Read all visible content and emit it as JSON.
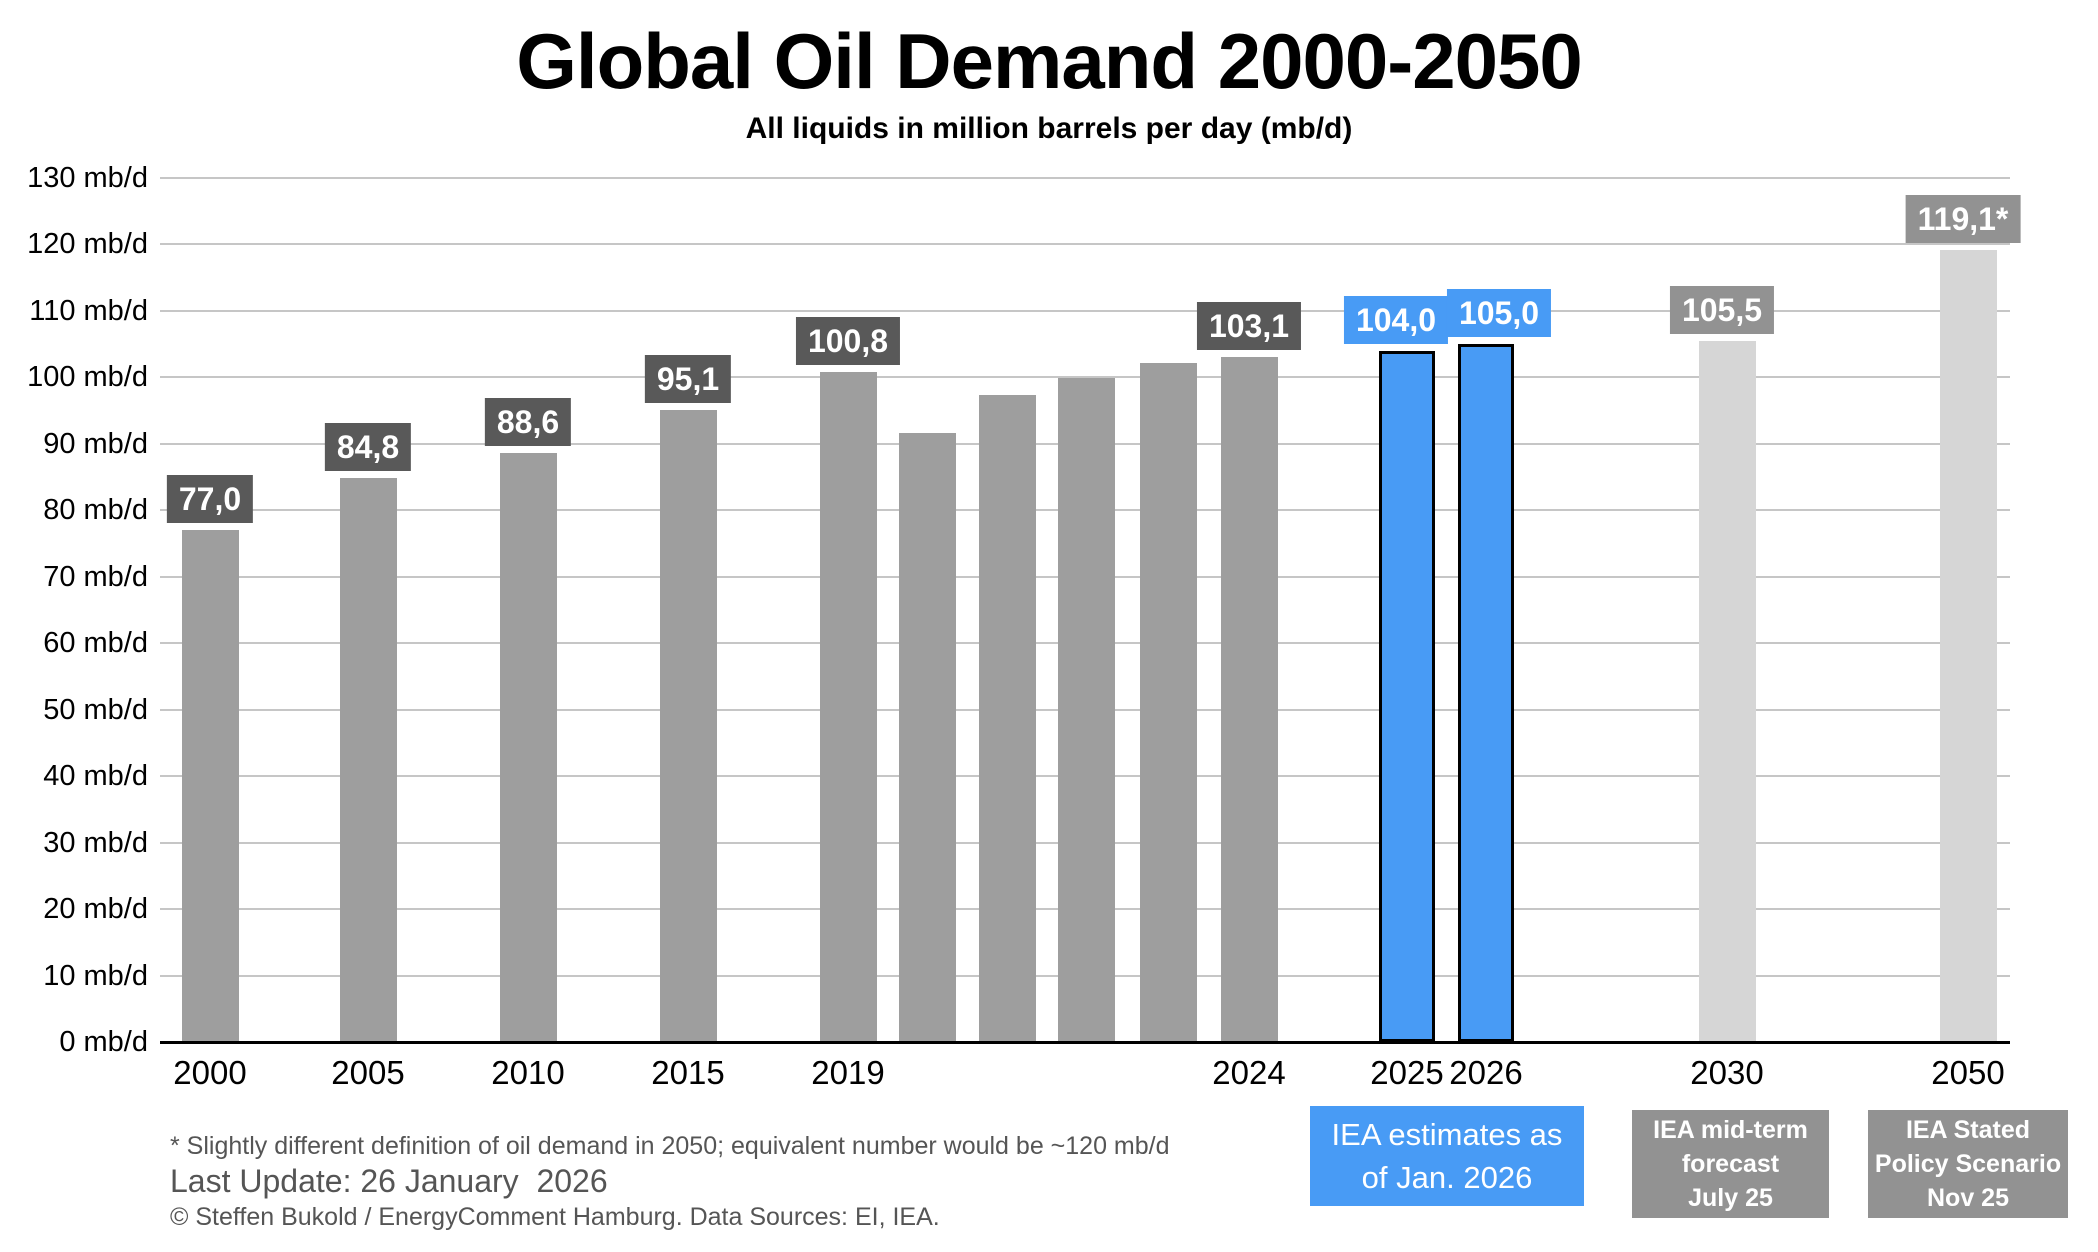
{
  "chart_data": {
    "type": "bar",
    "title": "Global Oil Demand 2000-2050",
    "subtitle": "All liquids in million barrels per day (mb/d)",
    "unit": "mb/d",
    "ylim": [
      0,
      130
    ],
    "ytick_step": 10,
    "ytick_labels": [
      "0 mb/d",
      "10 mb/d",
      "20 mb/d",
      "30 mb/d",
      "40 mb/d",
      "50 mb/d",
      "60 mb/d",
      "70 mb/d",
      "80 mb/d",
      "90 mb/d",
      "100 mb/d",
      "110 mb/d",
      "120 mb/d",
      "130 mb/d"
    ],
    "grid": true,
    "legend_position": "bottom-right",
    "bars": [
      {
        "year": "2000",
        "value": 77.0,
        "label": "77,0",
        "series": "history"
      },
      {
        "year": "2005",
        "value": 84.8,
        "label": "84,8",
        "series": "history"
      },
      {
        "year": "2010",
        "value": 88.6,
        "label": "88,6",
        "series": "history"
      },
      {
        "year": "2015",
        "value": 95.1,
        "label": "95,1",
        "series": "history"
      },
      {
        "year": "2019",
        "value": 100.8,
        "label": "100,8",
        "series": "history"
      },
      {
        "year": "",
        "value": 91.7,
        "label": "",
        "series": "history"
      },
      {
        "year": "",
        "value": 97.3,
        "label": "",
        "series": "history"
      },
      {
        "year": "",
        "value": 99.9,
        "label": "",
        "series": "history"
      },
      {
        "year": "",
        "value": 102.2,
        "label": "",
        "series": "history"
      },
      {
        "year": "2024",
        "value": 103.1,
        "label": "103,1",
        "series": "history"
      },
      {
        "year": "2025",
        "value": 104.0,
        "label": "104,0",
        "series": "estimate"
      },
      {
        "year": "2026",
        "value": 105.0,
        "label": "105,0",
        "series": "estimate"
      },
      {
        "year": "2030",
        "value": 105.5,
        "label": "105,5",
        "series": "forecast"
      },
      {
        "year": "2050",
        "value": 119.1,
        "label": "119,1*",
        "series": "scenario"
      }
    ]
  },
  "legend": {
    "estimate": {
      "label": "IEA estimates as\nof Jan. 2026"
    },
    "forecast": {
      "label": "IEA mid-term\nforecast\nJuly 25"
    },
    "scenario": {
      "label": "IEA Stated\nPolicy Scenario\nNov 25"
    }
  },
  "footer": {
    "footnote": "* Slightly different definition of oil demand in 2050; equivalent number would be ~120 mb/d",
    "last_update": "Last Update: 26 January  2026",
    "copyright": "© Steffen Bukold / EnergyComment Hamburg. Data Sources: EI, IEA."
  },
  "colors": {
    "history_bar": "#9e9e9e",
    "history_label_bg": "#595959",
    "estimate_bar": "#489bf5",
    "estimate_border": "#000000",
    "forecast_bar": "#d6d6d6",
    "forecast_label_bg": "#929292",
    "gridline": "#c6c6c6",
    "axis": "#000000",
    "footer_text": "#555555"
  }
}
